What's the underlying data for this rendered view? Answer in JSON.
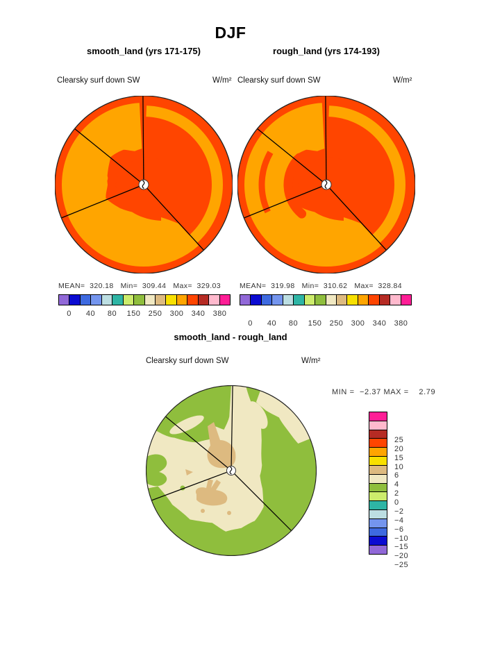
{
  "header": {
    "title": "DJF"
  },
  "colors": {
    "red": "#FF4500",
    "orange": "#FFA500",
    "green": "#8FBE3D",
    "cream": "#F0E8C2",
    "tan": "#DDBA80",
    "outline": "#222222",
    "text": "#333333"
  },
  "panels": {
    "smooth": {
      "title": "smooth_land (yrs 171-175)",
      "field_label": "Clearsky surf down SW",
      "units": "W/m²",
      "stats": "MEAN=  320.18   Min=  309.44   Max=  329.03"
    },
    "rough": {
      "title": "rough_land (yrs 174-193)",
      "field_label": "Clearsky surf down SW",
      "units": "W/m²",
      "stats": "MEAN=  319.98   Min=  310.62   Max=  328.84"
    },
    "diff": {
      "title": "smooth_land - rough_land",
      "field_label": "Clearsky surf down SW",
      "units": "W/m²",
      "minmax": "MIN =  −2.37 MAX =    2.79"
    }
  },
  "colorbar_h": {
    "colors": [
      "#9168D8",
      "#0B0BD1",
      "#3E6AE0",
      "#7495EE",
      "#BCDEE2",
      "#2EB5A5",
      "#CDEC6C",
      "#8FBE3D",
      "#F0E8C2",
      "#DDBA80",
      "#F8E000",
      "#FFA500",
      "#FF4500",
      "#B62B24",
      "#FFB9CD",
      "#FF1E96"
    ],
    "ticks": [
      "0",
      "40",
      "80",
      "150",
      "250",
      "300",
      "340",
      "380"
    ]
  },
  "colorbar_v": {
    "colors": [
      "#FF1E96",
      "#FFB9CD",
      "#B62B24",
      "#FF4500",
      "#FFA500",
      "#F8E000",
      "#DDBA80",
      "#F0E8C2",
      "#8FBE3D",
      "#CDEC6C",
      "#2EB5A5",
      "#BCDEE2",
      "#7495EE",
      "#3E6AE0",
      "#0B0BD1",
      "#9168D8"
    ],
    "ticks": [
      "25",
      "20",
      "15",
      "10",
      "6",
      "4",
      "2",
      "0",
      "−2",
      "−4",
      "−6",
      "−10",
      "−15",
      "−20",
      "−25"
    ]
  },
  "chart_data": {
    "type": "heatmap",
    "title": "DJF",
    "projection": "polar",
    "panels": [
      {
        "name": "smooth_land (yrs 171-175)",
        "variable": "Clearsky surf down SW",
        "units": "W/m²",
        "mean": 320.18,
        "min": 309.44,
        "max": 329.03,
        "colorbar_ticks": [
          0,
          40,
          80,
          150,
          250,
          300,
          340,
          380
        ],
        "legend_position": "bottom"
      },
      {
        "name": "rough_land (yrs 174-193)",
        "variable": "Clearsky surf down SW",
        "units": "W/m²",
        "mean": 319.98,
        "min": 310.62,
        "max": 328.84,
        "colorbar_ticks": [
          0,
          40,
          80,
          150,
          250,
          300,
          340,
          380
        ],
        "legend_position": "bottom"
      },
      {
        "name": "smooth_land - rough_land",
        "variable": "Clearsky surf down SW",
        "units": "W/m²",
        "min": -2.37,
        "max": 2.79,
        "colorbar_ticks": [
          25,
          20,
          15,
          10,
          6,
          4,
          2,
          0,
          -2,
          -4,
          -6,
          -10,
          -15,
          -20,
          -25
        ],
        "legend_position": "right"
      }
    ],
    "palette": [
      "#9168D8",
      "#0B0BD1",
      "#3E6AE0",
      "#7495EE",
      "#BCDEE2",
      "#2EB5A5",
      "#CDEC6C",
      "#8FBE3D",
      "#F0E8C2",
      "#DDBA80",
      "#F8E000",
      "#FFA500",
      "#FF4500",
      "#B62B24",
      "#FFB9CD",
      "#FF1E96"
    ]
  }
}
